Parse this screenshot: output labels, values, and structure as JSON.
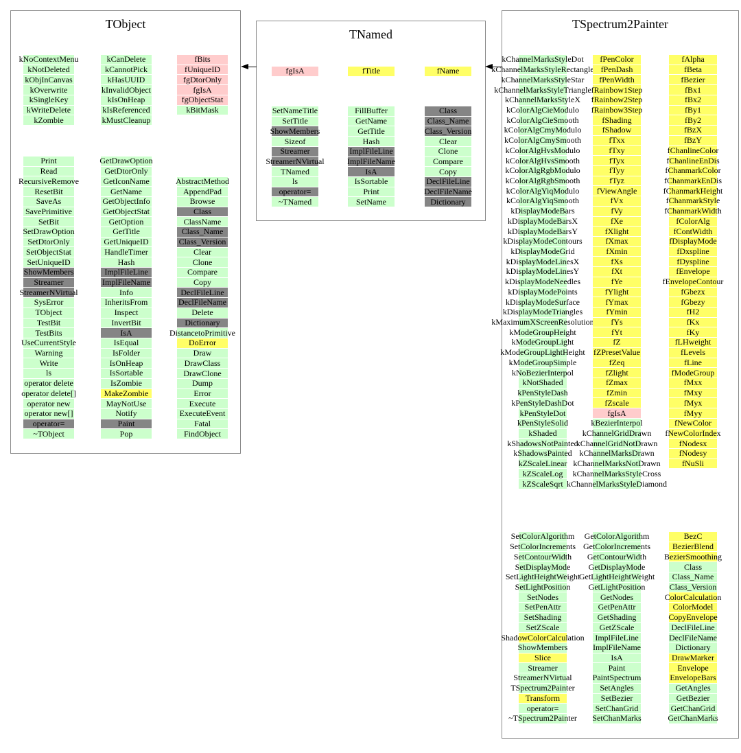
{
  "colors": {
    "green": "#ccffcc",
    "yellow": "#ffff66",
    "pink": "#ffcccc",
    "gray": "#858585"
  },
  "arrows": [
    {
      "from": "TNamed",
      "to": "TObject"
    },
    {
      "from": "TSpectrum2Painter",
      "to": "TNamed"
    }
  ],
  "classes": [
    {
      "title": "TObject",
      "members_col1": [
        "kNoContextMenu",
        "kNotDeleted",
        "kObjInCanvas",
        "kOverwrite",
        "kSingleKey",
        "kWriteDelete",
        "kZombie"
      ],
      "members_col2": [
        "kCanDelete",
        "kCannotPick",
        "kHasUUID",
        "kInvalidObject",
        "kIsOnHeap",
        "kIsReferenced",
        "kMustCleanup"
      ],
      "members_col3": [
        "fBits|p",
        "fUniqueID|p",
        "fgDtorOnly|p",
        "fgIsA|p",
        "fgObjectStat|p",
        "kBitMask"
      ],
      "methods_col1": [
        "Print",
        "Read",
        "RecursiveRemove",
        "ResetBit",
        "SaveAs",
        "SavePrimitive",
        "SetBit",
        "SetDrawOption",
        "SetDtorOnly",
        "SetObjectStat",
        "SetUniqueID",
        "ShowMembers|a",
        "Streamer|a",
        "StreamerNVirtual|a",
        "SysError",
        "TObject",
        "TestBit",
        "TestBits",
        "UseCurrentStyle",
        "Warning",
        "Write",
        "ls",
        "operator delete",
        "operator delete[]",
        "operator new",
        "operator new[]",
        "operator=|a",
        "~TObject"
      ],
      "methods_col2": [
        "GetDrawOption",
        "GetDtorOnly",
        "GetIconName",
        "GetName",
        "GetObjectInfo",
        "GetObjectStat",
        "GetOption",
        "GetTitle",
        "GetUniqueID",
        "HandleTimer",
        "Hash",
        "ImplFileLine|a",
        "ImplFileName|a",
        "Info",
        "InheritsFrom",
        "Inspect",
        "InvertBit",
        "IsA|a",
        "IsEqual",
        "IsFolder",
        "IsOnHeap",
        "IsSortable",
        "IsZombie",
        "MakeZombie|y",
        "MayNotUse",
        "Notify",
        "Paint|a",
        "Pop"
      ],
      "methods_col3": [
        "AbstractMethod",
        "AppendPad",
        "Browse",
        "Class|a",
        "ClassName",
        "Class_Name|a",
        "Class_Version|a",
        "Clear",
        "Clone",
        "Compare",
        "Copy",
        "DeclFileLine|a",
        "DeclFileName|a",
        "Delete",
        "Dictionary|a",
        "DistancetoPrimitive",
        "DoError|y",
        "Draw",
        "DrawClass",
        "DrawClone",
        "Dump",
        "Error",
        "Execute",
        "ExecuteEvent",
        "Fatal",
        "FindObject"
      ]
    },
    {
      "title": "TNamed",
      "members_col1": [
        "fgIsA|p"
      ],
      "members_col2": [
        "fTitle|y"
      ],
      "members_col3": [
        "fName|y"
      ],
      "methods_col1": [
        "SetNameTitle",
        "SetTitle",
        "ShowMembers|a",
        "Sizeof",
        "Streamer|a",
        "StreamerNVirtual|a",
        "TNamed",
        "ls",
        "operator=|a",
        "~TNamed"
      ],
      "methods_col2": [
        "FillBuffer",
        "GetName",
        "GetTitle",
        "Hash",
        "ImplFileLine|a",
        "ImplFileName|a",
        "IsA|a",
        "IsSortable",
        "Print",
        "SetName"
      ],
      "methods_col3": [
        "Class|a",
        "Class_Name|a",
        "Class_Version|a",
        "Clear",
        "Clone",
        "Compare",
        "Copy",
        "DeclFileLine|a",
        "DeclFileName|a",
        "Dictionary|a"
      ]
    },
    {
      "title": "TSpectrum2Painter",
      "members_col1": [
        "kChannelMarksStyleDot",
        "kChannelMarksStyleRectangle",
        "kChannelMarksStyleStar",
        "kChannelMarksStyleTriangle",
        "kChannelMarksStyleX",
        "kColorAlgCieModulo",
        "kColorAlgCieSmooth",
        "kColorAlgCmyModulo",
        "kColorAlgCmySmooth",
        "kColorAlgHvsModulo",
        "kColorAlgHvsSmooth",
        "kColorAlgRgbModulo",
        "kColorAlgRgbSmooth",
        "kColorAlgYiqModulo",
        "kColorAlgYiqSmooth",
        "kDisplayModeBars",
        "kDisplayModeBarsX",
        "kDisplayModeBarsY",
        "kDisplayModeContours",
        "kDisplayModeGrid",
        "kDisplayModeLinesX",
        "kDisplayModeLinesY",
        "kDisplayModeNeedles",
        "kDisplayModePoints",
        "kDisplayModeSurface",
        "kDisplayModeTriangles",
        "kMaximumXScreenResolution",
        "kModeGroupHeight",
        "kModeGroupLight",
        "kModeGroupLightHeight",
        "kModeGroupSimple",
        "kNoBezierInterpol",
        "kNotShaded",
        "kPenStyleDash",
        "kPenStyleDashDot",
        "kPenStyleDot",
        "kPenStyleSolid",
        "kShaded",
        "kShadowsNotPainted",
        "kShadowsPainted",
        "kZScaleLinear",
        "kZScaleLog",
        "kZScaleSqrt"
      ],
      "members_col2": [
        "fPenColor",
        "fPenDash",
        "fPenWidth",
        "fRainbow1Step",
        "fRainbow2Step",
        "fRainbow3Step",
        "fShading",
        "fShadow",
        "fTxx",
        "fTxy",
        "fTyx",
        "fTyy",
        "fTyz",
        "fViewAngle",
        "fVx",
        "fVy",
        "fXe",
        "fXlight",
        "fXmax",
        "fXmin",
        "fXs",
        "fXt",
        "fYe",
        "fYlight",
        "fYmax",
        "fYmin",
        "fYs",
        "fYt",
        "fZ",
        "fZPresetValue",
        "fZeq",
        "fZlight",
        "fZmax",
        "fZmin",
        "fZscale",
        "fgIsA|p",
        "kBezierInterpol|g",
        "kChannelGridDrawn|g",
        "kChannelGridNotDrawn|g",
        "kChannelMarksDrawn|g",
        "kChannelMarksNotDrawn|g",
        "kChannelMarksStyleCross|g",
        "kChannelMarksStyleDiamond|g"
      ],
      "members_col3": [
        "fAlpha",
        "fBeta",
        "fBezier",
        "fBx1",
        "fBx2",
        "fBy1",
        "fBy2",
        "fBzX",
        "fBzY",
        "fChanlineColor",
        "fChanlineEnDis",
        "fChanmarkColor",
        "fChanmarkEnDis",
        "fChanmarkHeight",
        "fChanmarkStyle",
        "fChanmarkWidth",
        "fColorAlg",
        "fContWidth",
        "fDisplayMode",
        "fDxspline",
        "fDyspline",
        "fEnvelope",
        "fEnvelopeContour",
        "fGbezx",
        "fGbezy",
        "fH2",
        "fKx",
        "fKy",
        "fLHweight",
        "fLevels",
        "fLine",
        "fModeGroup",
        "fMxx",
        "fMxy",
        "fMyx",
        "fMyy",
        "fNewColor",
        "fNewColorIndex",
        "fNodesx",
        "fNodesy",
        "fNuSli"
      ],
      "methods_col1": [
        "SetColorAlgorithm",
        "SetColorIncrements",
        "SetContourWidth",
        "SetDisplayMode",
        "SetLightHeightWeight",
        "SetLightPosition",
        "SetNodes",
        "SetPenAttr",
        "SetShading",
        "SetZScale",
        "ShadowColorCalculation|y",
        "ShowMembers",
        "Slice|y",
        "Streamer",
        "StreamerNVirtual",
        "TSpectrum2Painter",
        "Transform|y",
        "operator=",
        "~TSpectrum2Painter"
      ],
      "methods_col2": [
        "GetColorAlgorithm",
        "GetColorIncrements",
        "GetContourWidth",
        "GetDisplayMode",
        "GetLightHeightWeight",
        "GetLightPosition",
        "GetNodes",
        "GetPenAttr",
        "GetShading",
        "GetZScale",
        "ImplFileLine",
        "ImplFileName",
        "IsA",
        "Paint",
        "PaintSpectrum",
        "SetAngles",
        "SetBezier",
        "SetChanGrid",
        "SetChanMarks"
      ],
      "methods_col3": [
        "BezC|y",
        "BezierBlend|y",
        "BezierSmoothing|y",
        "Class",
        "Class_Name",
        "Class_Version",
        "ColorCalculation|y",
        "ColorModel|y",
        "CopyEnvelope|y",
        "DeclFileLine",
        "DeclFileName",
        "Dictionary",
        "DrawMarker|y",
        "Envelope|y",
        "EnvelopeBars|y",
        "GetAngles",
        "GetBezier",
        "GetChanGrid",
        "GetChanMarks"
      ]
    }
  ]
}
